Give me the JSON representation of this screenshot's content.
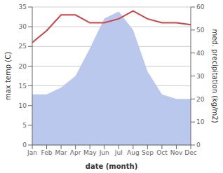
{
  "chart_data": {
    "type": "line",
    "categories": [
      "Jan",
      "Feb",
      "Mar",
      "Apr",
      "May",
      "Jun",
      "Jul",
      "Aug",
      "Sep",
      "Oct",
      "Nov",
      "Dec"
    ],
    "series": [
      {
        "type": "area",
        "axis": "y2",
        "color": "#bbc8ed",
        "values": [
          22,
          22,
          25,
          30,
          42,
          55,
          58,
          50,
          32,
          22,
          20,
          20
        ]
      },
      {
        "type": "line",
        "color": "#cc4444",
        "values": [
          26,
          29,
          33,
          33,
          31,
          31,
          32,
          34,
          32,
          31,
          31,
          30.5
        ]
      }
    ],
    "xlabel": "date (month)",
    "ylabel": "max temp (C)",
    "y2label": "med. precipitation (kg/m2)",
    "ylim": [
      0,
      35
    ],
    "yticks": [
      0,
      5,
      10,
      15,
      20,
      25,
      30,
      35
    ],
    "y2lim": [
      0,
      60
    ],
    "y2ticks": [
      0,
      10,
      20,
      30,
      40,
      50,
      60
    ],
    "grid": true
  }
}
